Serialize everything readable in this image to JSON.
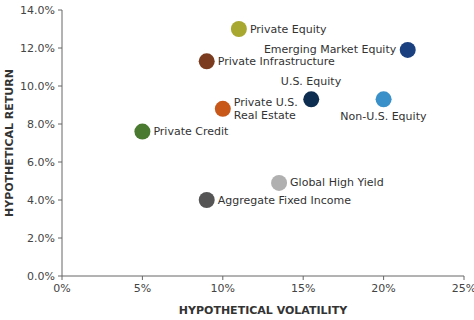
{
  "chart_data": {
    "type": "scatter",
    "x": [
      0.11,
      0.09,
      0.1,
      0.05,
      0.215,
      0.155,
      0.2,
      0.135,
      0.09
    ],
    "values": [
      0.13,
      0.113,
      0.088,
      0.076,
      0.119,
      0.093,
      0.093,
      0.049,
      0.04
    ],
    "annotations": [
      "Private Equity",
      "Private Infrastructure",
      "Private U.S.\nReal Estate",
      "Private Credit",
      "Emerging Market Equity",
      "U.S. Equity",
      "Non-U.S. Equity",
      "Global High Yield",
      "Aggregate Fixed Income"
    ],
    "colors": [
      "#a8a830",
      "#7a3b1e",
      "#c8581a",
      "#4a7a30",
      "#1a4080",
      "#0d2d50",
      "#3a90c8",
      "#b0b0b0",
      "#555555"
    ],
    "xlabel": "HYPOTHETICAL VOLATILITY",
    "ylabel": "HYPOTHETICAL RETURN",
    "xlim": [
      0.0,
      0.25
    ],
    "ylim": [
      0.0,
      0.14
    ],
    "xticks": [
      {
        "value": 0.0,
        "label": "0%"
      },
      {
        "value": 0.05,
        "label": "5%"
      },
      {
        "value": 0.1,
        "label": "10%"
      },
      {
        "value": 0.15,
        "label": "15%"
      },
      {
        "value": 0.2,
        "label": "20%"
      },
      {
        "value": 0.25,
        "label": "25%"
      }
    ],
    "yticks": [
      {
        "value": 0.0,
        "label": "0.0%"
      },
      {
        "value": 0.02,
        "label": "2.0%"
      },
      {
        "value": 0.04,
        "label": "4.0%"
      },
      {
        "value": 0.06,
        "label": "6.0%"
      },
      {
        "value": 0.08,
        "label": "8.0%"
      },
      {
        "value": 0.1,
        "label": "10.0%"
      },
      {
        "value": 0.12,
        "label": "12.0%"
      },
      {
        "value": 0.14,
        "label": "14.0%"
      }
    ],
    "grid": false
  }
}
